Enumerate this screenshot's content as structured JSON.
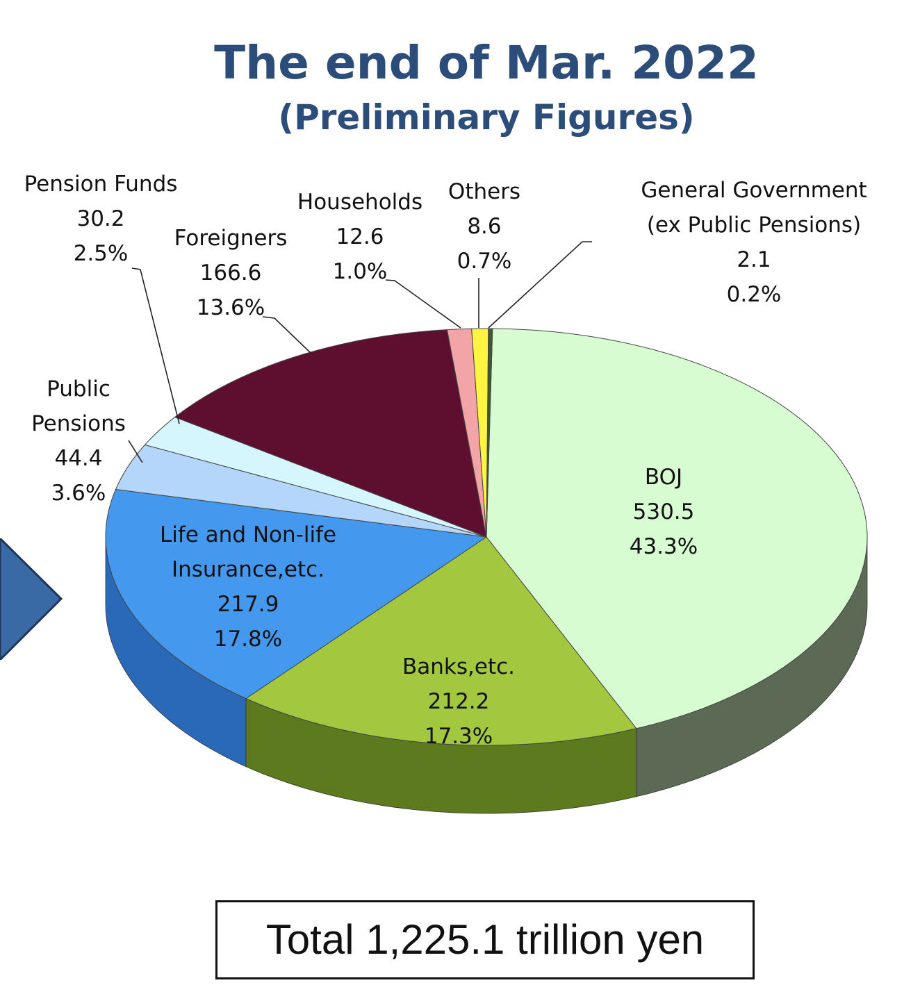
{
  "chart_data": {
    "type": "pie",
    "title": "The end of Mar. 2022",
    "subtitle": "(Preliminary Figures)",
    "total_label": "Total 1,225.1 trillion yen",
    "slices": [
      {
        "name": [
          "BOJ"
        ],
        "value": 530.5,
        "value_label": "530.5",
        "pct": "43.3%",
        "color": "#d8fcd2",
        "side": "#5c6a55"
      },
      {
        "name": [
          "Banks,etc."
        ],
        "value": 212.2,
        "value_label": "212.2",
        "pct": "17.3%",
        "color": "#a3c840",
        "side": "#5e7a1e"
      },
      {
        "name": [
          "Life and Non-life",
          "Insurance,etc."
        ],
        "value": 217.9,
        "value_label": "217.9",
        "pct": "17.8%",
        "color": "#4499ee",
        "side": "#2a68b8"
      },
      {
        "name": [
          "Public",
          "Pensions"
        ],
        "value": 44.4,
        "value_label": "44.4",
        "pct": "3.6%",
        "color": "#b4d6fa",
        "side": "#6e93bd"
      },
      {
        "name": [
          "Pension Funds"
        ],
        "value": 30.2,
        "value_label": "30.2",
        "pct": "2.5%",
        "color": "#d6f6fe",
        "side": "#8fb3bd"
      },
      {
        "name": [
          "Foreigners"
        ],
        "value": 166.6,
        "value_label": "166.6",
        "pct": "13.6%",
        "color": "#5e0f30",
        "side": "#3a0a1e"
      },
      {
        "name": [
          "Households"
        ],
        "value": 12.6,
        "value_label": "12.6",
        "pct": "1.0%",
        "color": "#f2a4a6",
        "side": "#a06668"
      },
      {
        "name": [
          "Others"
        ],
        "value": 8.6,
        "value_label": "8.6",
        "pct": "0.7%",
        "color": "#fdf542",
        "side": "#a8a22a"
      },
      {
        "name": [
          "General Government",
          "(ex Public Pensions)"
        ],
        "value": 2.1,
        "value_label": "2.1",
        "pct": "0.2%",
        "color": "#3e5a2e",
        "side": "#2a3d1f"
      }
    ]
  },
  "colors": {
    "title": "#2c4d7a",
    "arrow": "#3a6aa5"
  }
}
